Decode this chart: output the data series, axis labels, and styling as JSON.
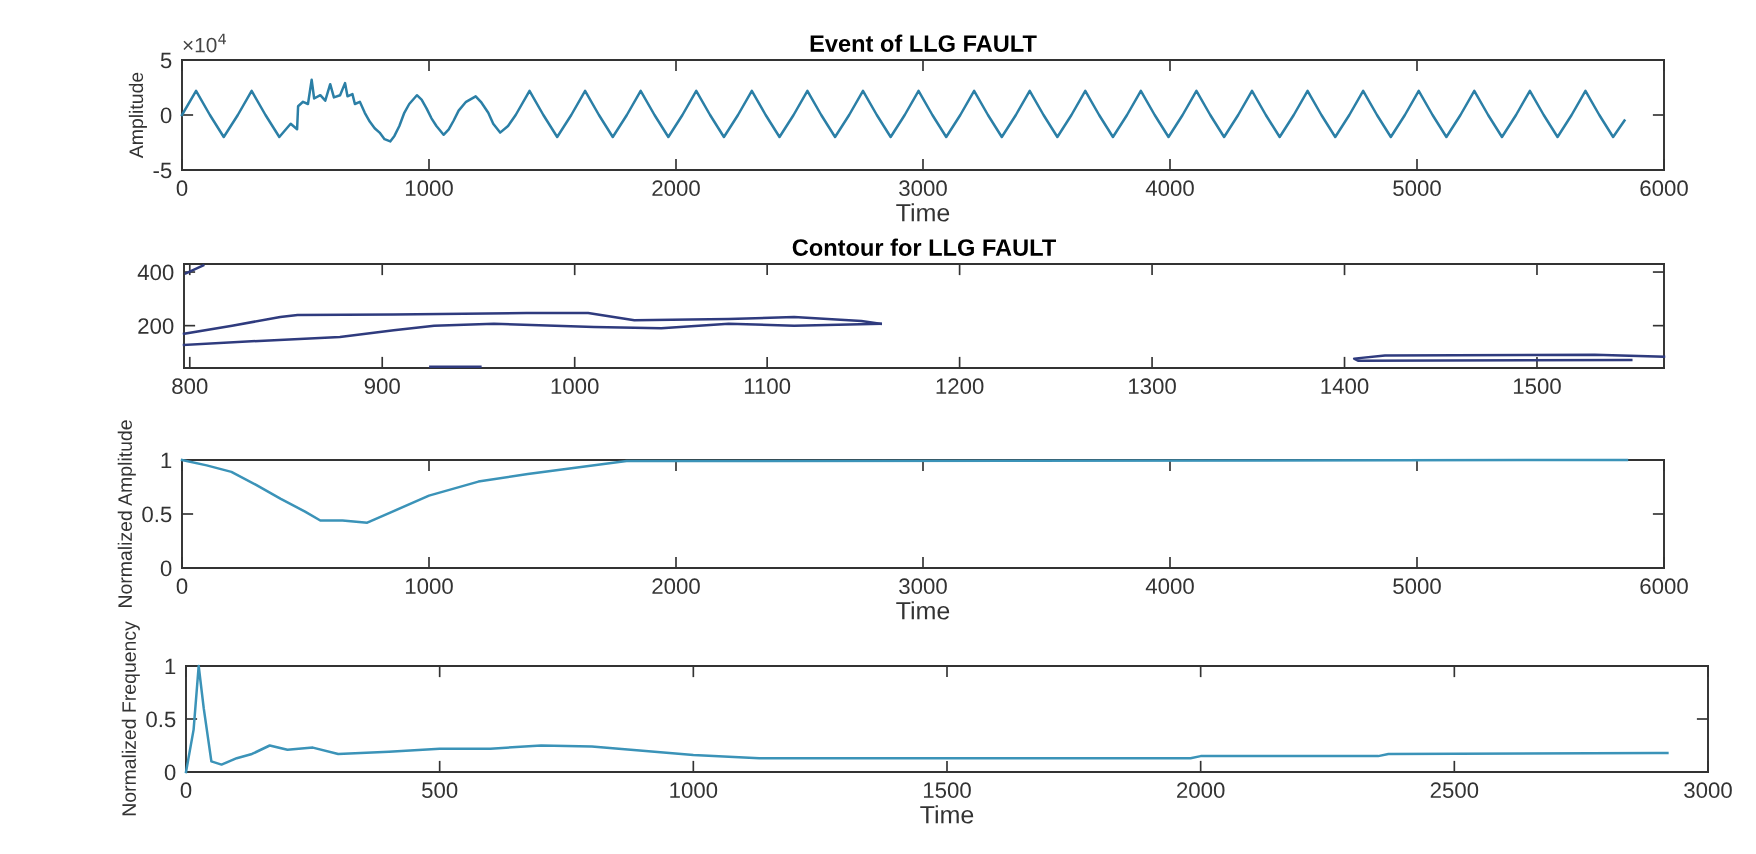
{
  "chart_data": [
    {
      "type": "line",
      "title": "Event of LLG FAULT",
      "xlabel": "Time",
      "ylabel": "Amplitude",
      "annotations": [
        "×10$^{4}$"
      ],
      "xlim": [
        0,
        6000
      ],
      "ylim": [
        -5,
        5
      ],
      "xticks": [
        0,
        1000,
        2000,
        3000,
        4000,
        5000,
        6000
      ],
      "yticks": [
        -5,
        0,
        5
      ],
      "series": [
        {
          "color": "#2b7fa6",
          "x": [
            0,
            57,
            113,
            169,
            226,
            282,
            338,
            394,
            440,
            466,
            470,
            490,
            510,
            525,
            535,
            560,
            580,
            600,
            615,
            640,
            660,
            670,
            690,
            700,
            720,
            740,
            760,
            780,
            800,
            820,
            843,
            860,
            880,
            900,
            920,
            951,
            970,
            990,
            1010,
            1030,
            1059,
            1080,
            1100,
            1120,
            1150,
            1189,
            1210,
            1240,
            1260,
            1288,
            1320,
            1351,
            1407,
            1463,
            1519,
            1576,
            1632,
            1688,
            1744,
            1801,
            1857,
            1913,
            1969,
            2026,
            2082,
            2138,
            2194,
            2251,
            2307,
            2363,
            2419,
            2476,
            2532,
            2588,
            2644,
            2701,
            2757,
            2813,
            2869,
            2926,
            2982,
            3038,
            3094,
            3151,
            3207,
            3263,
            3319,
            3376,
            3432,
            3488,
            3544,
            3601,
            3657,
            3713,
            3769,
            3826,
            3882,
            3938,
            3994,
            4051,
            4107,
            4163,
            4219,
            4276,
            4332,
            4388,
            4444,
            4501,
            4557,
            4613,
            4669,
            4726,
            4782,
            4838,
            4894,
            4951,
            5007,
            5063,
            5119,
            5176,
            5232,
            5288,
            5344,
            5401,
            5457,
            5513,
            5569,
            5626,
            5682,
            5738,
            5794,
            5840
          ],
          "values": [
            0,
            2.2,
            0,
            -2,
            0,
            2.2,
            0,
            -2,
            -0.8,
            -1.3,
            0.8,
            1.2,
            1.0,
            3.2,
            1.5,
            1.8,
            1.3,
            2.8,
            1.6,
            1.8,
            2.9,
            1.7,
            1.9,
            1.0,
            1.2,
            0.2,
            -0.6,
            -1.2,
            -1.6,
            -2.2,
            -2.4,
            -1.9,
            -1.0,
            0.2,
            1.0,
            1.8,
            1.4,
            0.6,
            -0.3,
            -1.0,
            -1.8,
            -1.3,
            -0.5,
            0.4,
            1.2,
            1.7,
            1.2,
            0.2,
            -0.8,
            -1.6,
            -1.0,
            0,
            2.2,
            0,
            -2,
            0,
            2.2,
            0,
            -2,
            0,
            2.2,
            0,
            -2,
            0,
            2.2,
            0,
            -2,
            0,
            2.2,
            0,
            -2,
            0,
            2.2,
            0,
            -2,
            0,
            2.2,
            0,
            -2,
            0,
            2.2,
            0,
            -2,
            0,
            2.2,
            0,
            -2,
            0,
            2.2,
            0,
            -2,
            0,
            2.2,
            0,
            -2,
            0,
            2.2,
            0,
            -2,
            0,
            2.2,
            0,
            -2,
            0,
            2.2,
            0,
            -2,
            0,
            2.2,
            0,
            -2,
            0,
            2.2,
            0,
            -2,
            0,
            2.2,
            0,
            -2,
            0,
            2.2,
            0,
            -2,
            0,
            2.2,
            0,
            -2,
            0,
            2.2,
            0,
            -2,
            -0.5
          ]
        }
      ]
    },
    {
      "type": "line",
      "title": "Contour for LLG FAULT",
      "xlim": [
        797,
        1566
      ],
      "ylim": [
        42,
        430
      ],
      "xticks": [
        800,
        900,
        1000,
        1100,
        1200,
        1300,
        1400,
        1500
      ],
      "yticks": [
        200,
        400
      ],
      "series": [
        {
          "color": "#2f3b7e",
          "x": [
            797,
            822,
            847,
            856,
            906,
            975,
            1007,
            1031,
            1080,
            1114,
            1149,
            1159
          ],
          "values": [
            170,
            200,
            232,
            240,
            242,
            247,
            247,
            220,
            225,
            232,
            217,
            207
          ]
        },
        {
          "color": "#2f3b7e",
          "x": [
            797,
            836,
            878,
            906,
            927,
            958,
            1010,
            1045,
            1080,
            1114,
            1159
          ],
          "values": [
            128,
            143,
            158,
            183,
            200,
            207,
            195,
            190,
            207,
            200,
            207
          ]
        },
        {
          "color": "#2f3b7e",
          "x": [
            798,
            807
          ],
          "values": [
            395,
            425
          ]
        },
        {
          "color": "#2f3b7e",
          "x": [
            925,
            951
          ],
          "values": [
            47,
            47
          ]
        },
        {
          "color": "#2f3b7e",
          "x": [
            1566,
            1530,
            1421,
            1405,
            1407,
            1549
          ],
          "values": [
            84,
            91,
            89,
            77,
            69,
            72
          ]
        }
      ]
    },
    {
      "type": "line",
      "xlabel": "Time",
      "ylabel": "Normalized Amplitude",
      "xlim": [
        0,
        6000
      ],
      "ylim": [
        0,
        1
      ],
      "xticks": [
        0,
        1000,
        2000,
        3000,
        4000,
        5000,
        6000
      ],
      "yticks": [
        0,
        0.5,
        1
      ],
      "series": [
        {
          "color": "#3b93b8",
          "x": [
            0,
            100,
            200,
            300,
            400,
            500,
            560,
            650,
            750,
            850,
            1000,
            1200,
            1400,
            1600,
            1800,
            5850
          ],
          "values": [
            1,
            0.95,
            0.89,
            0.77,
            0.64,
            0.52,
            0.44,
            0.44,
            0.42,
            0.52,
            0.67,
            0.8,
            0.87,
            0.93,
            0.99,
            1
          ]
        }
      ]
    },
    {
      "type": "line",
      "xlabel": "Time",
      "ylabel": "Normalized Frequency",
      "xlim": [
        0,
        3000
      ],
      "ylim": [
        0,
        1
      ],
      "xticks": [
        0,
        500,
        1000,
        1500,
        2000,
        2500,
        3000
      ],
      "yticks": [
        0,
        0.5,
        1
      ],
      "series": [
        {
          "color": "#3b93b8",
          "x": [
            0,
            15,
            25,
            35,
            50,
            70,
            100,
            130,
            165,
            200,
            250,
            300,
            400,
            500,
            600,
            700,
            800,
            900,
            1000,
            1130,
            1500,
            1980,
            2000,
            2350,
            2370,
            2900,
            2920
          ],
          "values": [
            0,
            0.4,
            1,
            0.6,
            0.1,
            0.07,
            0.13,
            0.17,
            0.25,
            0.21,
            0.23,
            0.17,
            0.19,
            0.22,
            0.22,
            0.25,
            0.24,
            0.2,
            0.16,
            0.13,
            0.13,
            0.13,
            0.15,
            0.15,
            0.17,
            0.18,
            0.18
          ]
        }
      ]
    }
  ]
}
